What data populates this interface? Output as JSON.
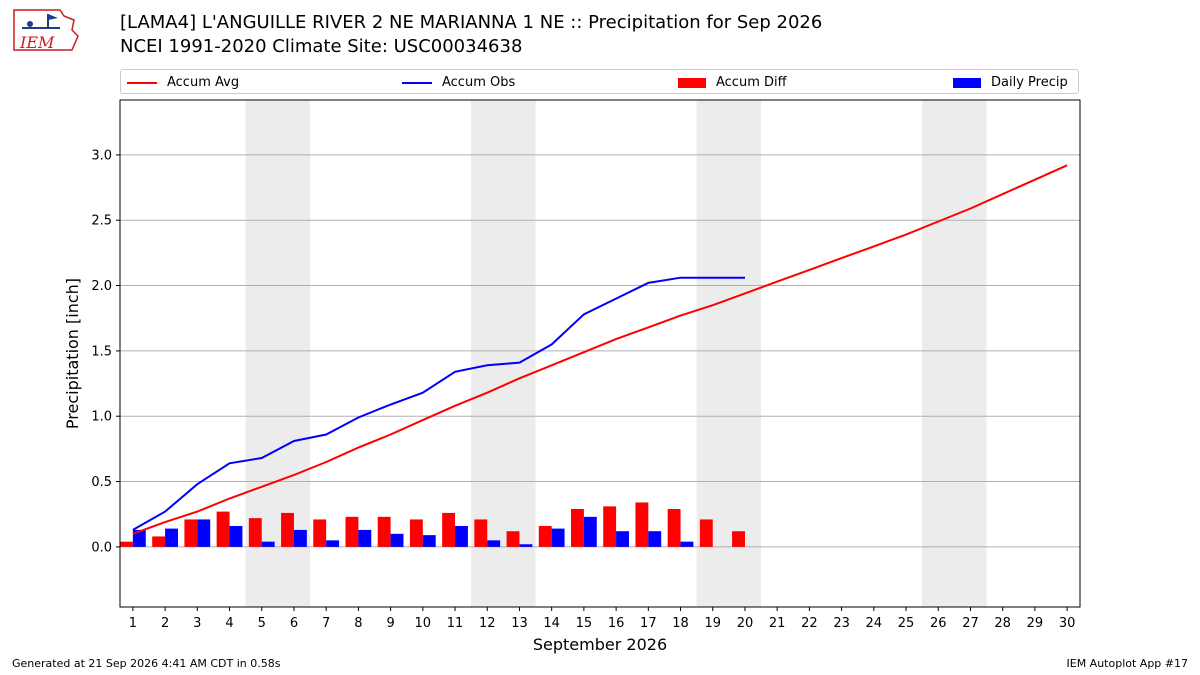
{
  "header": {
    "title_line1": "[LAMA4] L'ANGUILLE RIVER 2 NE MARIANNA 1 NE :: Precipitation for Sep 2026",
    "title_line2": "NCEI 1991-2020 Climate Site: USC00034638",
    "logo_text": "IEM"
  },
  "legend": {
    "items": [
      {
        "label": "Accum Avg",
        "kind": "line",
        "color": "#ff0000"
      },
      {
        "label": "Accum Obs",
        "kind": "line",
        "color": "#0000ff"
      },
      {
        "label": "Accum Diff",
        "kind": "bar",
        "color": "#ff0000"
      },
      {
        "label": "Daily Precip",
        "kind": "bar",
        "color": "#0000ff"
      }
    ]
  },
  "footer": {
    "generated": "Generated at 21 Sep 2026 4:41 AM CDT in 0.58s",
    "app": "IEM Autoplot App #17"
  },
  "chart_data": {
    "type": "bar",
    "xlabel": "September 2026",
    "ylabel": "Precipitation [inch]",
    "ylim": [
      -0.46,
      3.42
    ],
    "yticks": [
      0.0,
      0.5,
      1.0,
      1.5,
      2.0,
      2.5,
      3.0
    ],
    "ytick_labels": [
      "0.0",
      "0.5",
      "1.0",
      "1.5",
      "2.0",
      "2.5",
      "3.0"
    ],
    "x_days": [
      1,
      2,
      3,
      4,
      5,
      6,
      7,
      8,
      9,
      10,
      11,
      12,
      13,
      14,
      15,
      16,
      17,
      18,
      19,
      20,
      21,
      22,
      23,
      24,
      25,
      26,
      27,
      28,
      29,
      30
    ],
    "weekend_days": [
      [
        5,
        6
      ],
      [
        12,
        13
      ],
      [
        19,
        20
      ],
      [
        26,
        27
      ]
    ],
    "grid": "horizontal",
    "colors": {
      "avg": "#ff0000",
      "obs": "#0000ff",
      "weekend": "#ececec",
      "grid": "#b0b0b0"
    },
    "series": [
      {
        "name": "Accum Avg",
        "kind": "line",
        "values": [
          0.1,
          0.19,
          0.27,
          0.37,
          0.46,
          0.55,
          0.65,
          0.76,
          0.86,
          0.97,
          1.08,
          1.18,
          1.29,
          1.39,
          1.49,
          1.59,
          1.68,
          1.77,
          1.85,
          1.94,
          2.03,
          2.12,
          2.21,
          2.3,
          2.39,
          2.49,
          2.59,
          2.7,
          2.81,
          2.92
        ]
      },
      {
        "name": "Accum Obs",
        "kind": "line",
        "values": [
          0.13,
          0.27,
          0.48,
          0.64,
          0.68,
          0.81,
          0.86,
          0.99,
          1.09,
          1.18,
          1.34,
          1.39,
          1.41,
          1.55,
          1.78,
          1.9,
          2.02,
          2.06,
          2.06,
          2.06
        ]
      },
      {
        "name": "Accum Diff",
        "kind": "bar",
        "values": [
          0.04,
          0.08,
          0.21,
          0.27,
          0.22,
          0.26,
          0.21,
          0.23,
          0.23,
          0.21,
          0.26,
          0.21,
          0.12,
          0.16,
          0.29,
          0.31,
          0.34,
          0.29,
          0.21,
          0.12
        ]
      },
      {
        "name": "Daily Precip",
        "kind": "bar",
        "values": [
          0.13,
          0.14,
          0.21,
          0.16,
          0.04,
          0.13,
          0.05,
          0.13,
          0.1,
          0.09,
          0.16,
          0.05,
          0.02,
          0.14,
          0.23,
          0.12,
          0.12,
          0.04,
          0.0,
          0.0
        ]
      }
    ]
  }
}
